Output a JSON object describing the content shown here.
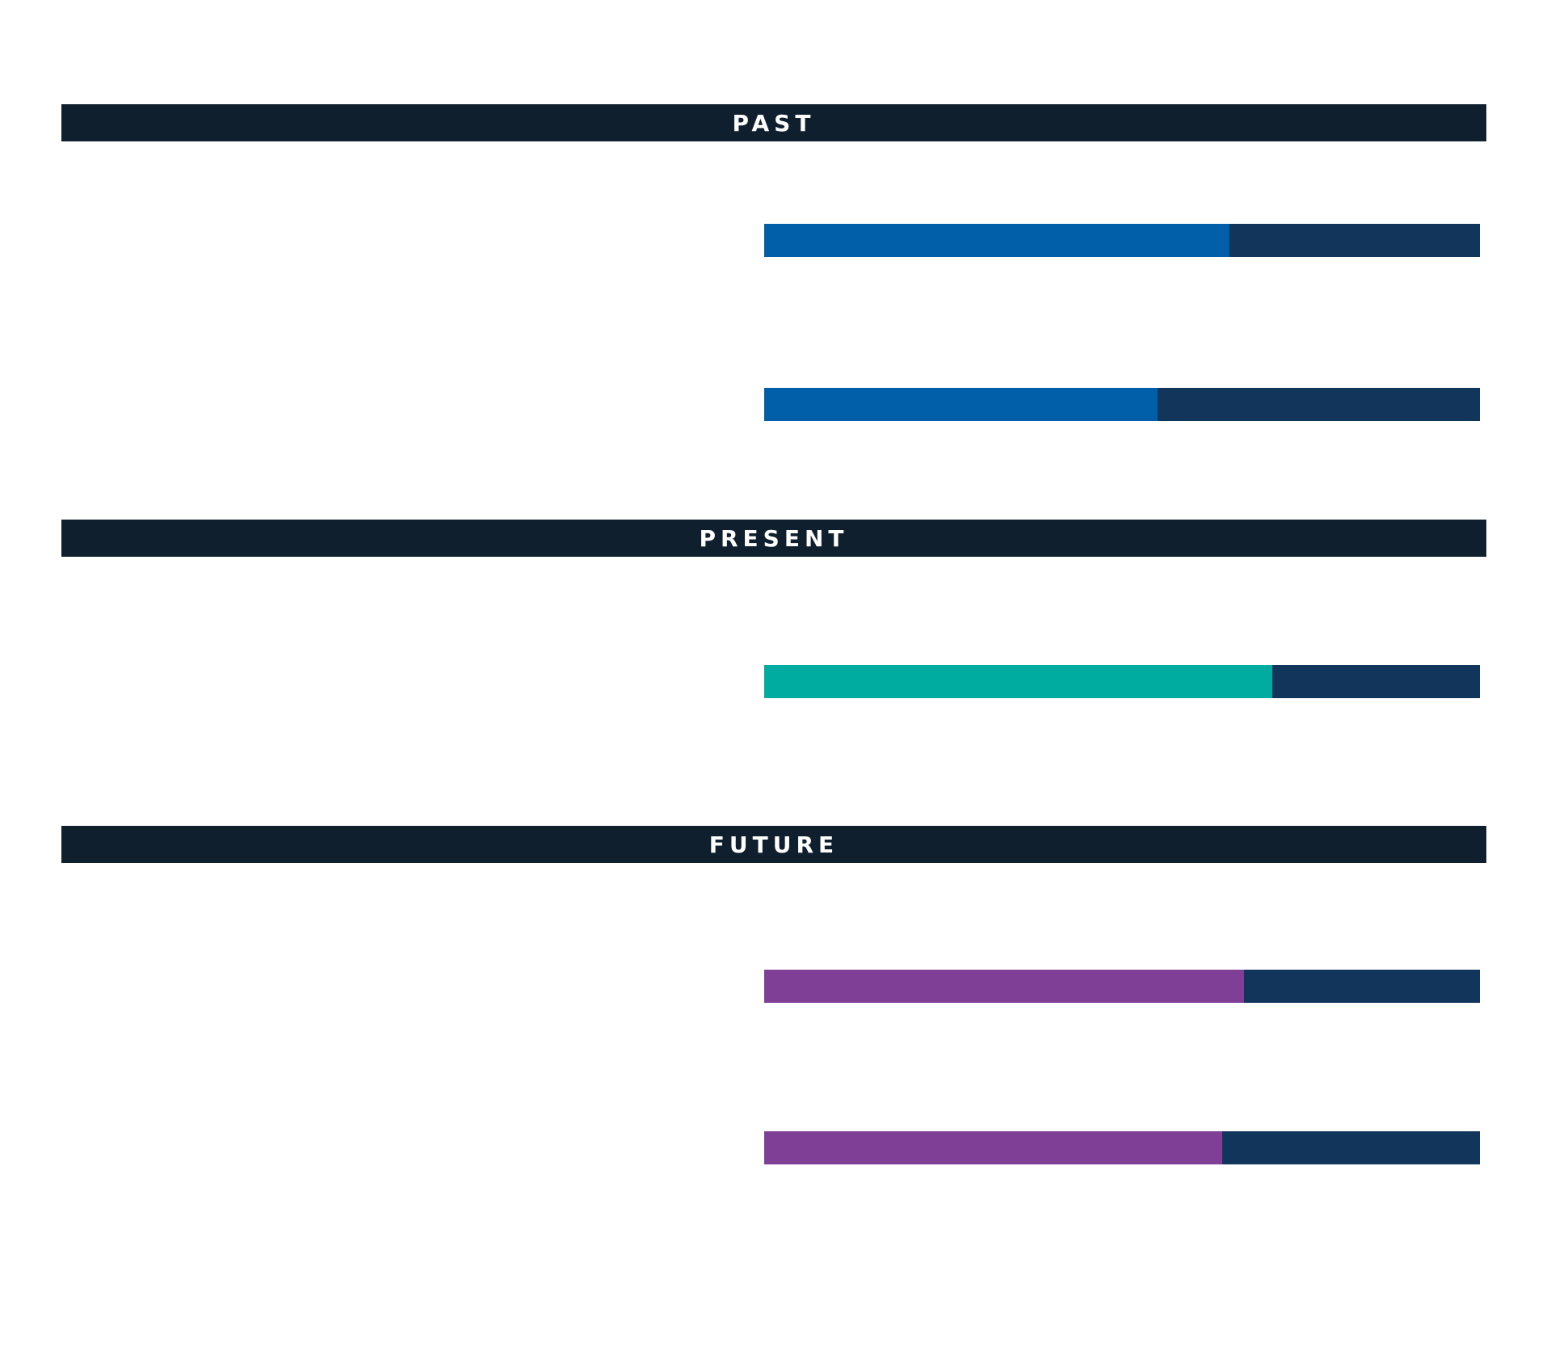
{
  "sections": [
    {
      "label": "PAST"
    },
    {
      "label": "PRESENT"
    },
    {
      "label": "FUTURE"
    }
  ],
  "colors": {
    "header_bg": "#0f1f2e",
    "header_text": "#ffffff",
    "track": "#12365b",
    "past": "#005fa8",
    "present": "#00aba0",
    "future": "#7f3f97"
  },
  "chart_data": {
    "type": "bar",
    "orientation": "horizontal",
    "stacked_share": true,
    "groups": [
      "PAST",
      "PAST",
      "PRESENT",
      "FUTURE",
      "FUTURE"
    ],
    "values": [
      0.65,
      0.55,
      0.71,
      0.67,
      0.64
    ],
    "xlim": [
      0,
      1
    ],
    "grid": false
  }
}
